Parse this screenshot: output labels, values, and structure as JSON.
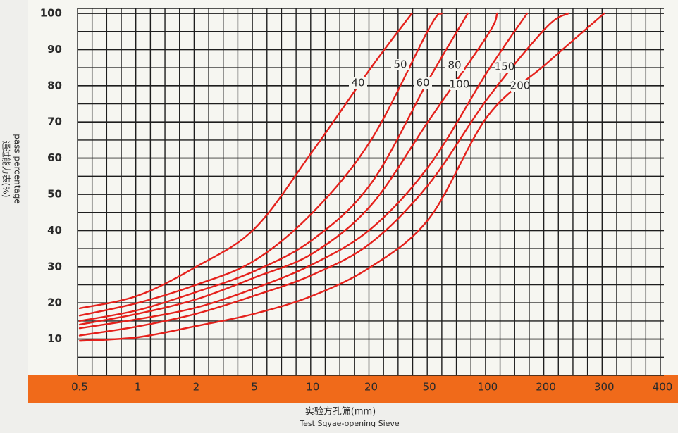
{
  "chart_data": {
    "type": "line",
    "xlabel_cn": "实验方孔筛(mm)",
    "xlabel": "Test Sqyae-opening Sieve",
    "ylabel": "pass percentage",
    "ylabel_cn": "通过能力表(%)",
    "xlim": [
      0.5,
      400
    ],
    "xticks": [
      0.5,
      1,
      2,
      5,
      10,
      20,
      50,
      100,
      200,
      300,
      400
    ],
    "ylim": [
      0,
      100
    ],
    "yticks": [
      10,
      20,
      30,
      40,
      50,
      60,
      70,
      80,
      90,
      100
    ],
    "grid": true,
    "series": [
      {
        "name": "40",
        "color": "#e5211c",
        "x": [
          0.5,
          1,
          2,
          5,
          10,
          20,
          38
        ],
        "values": [
          18.5,
          22,
          30,
          40.5,
          62,
          85,
          100
        ]
      },
      {
        "name": "50",
        "color": "#e5211c",
        "x": [
          0.5,
          1,
          2,
          5,
          10,
          20,
          50,
          58
        ],
        "values": [
          16.5,
          20,
          25,
          31.7,
          45,
          65,
          96,
          100
        ]
      },
      {
        "name": "60",
        "color": "#e5211c",
        "x": [
          0.5,
          1,
          2,
          5,
          10,
          20,
          50,
          79
        ],
        "values": [
          15,
          18,
          23,
          28.8,
          37.5,
          53,
          82,
          100
        ]
      },
      {
        "name": "80",
        "color": "#e5211c",
        "x": [
          0.5,
          1,
          2,
          5,
          10,
          20,
          50,
          100,
          112
        ],
        "values": [
          14,
          17,
          21,
          27,
          33.7,
          47,
          70.6,
          94,
          100
        ]
      },
      {
        "name": "100",
        "color": "#e5211c",
        "x": [
          0.5,
          1,
          2,
          5,
          10,
          20,
          50,
          100,
          160
        ],
        "values": [
          13,
          15.5,
          18.7,
          24,
          30.7,
          40.5,
          58,
          84,
          100
        ]
      },
      {
        "name": "150",
        "color": "#e5211c",
        "x": [
          0.5,
          1,
          2,
          5,
          10,
          20,
          50,
          100,
          200,
          234
        ],
        "values": [
          11,
          13.5,
          17,
          22,
          27.8,
          36.6,
          53,
          76.5,
          96,
          100
        ]
      },
      {
        "name": "200",
        "color": "#e5211c",
        "x": [
          0.5,
          1,
          2,
          5,
          10,
          20,
          50,
          100,
          200,
          300
        ],
        "values": [
          9.5,
          10.5,
          13.6,
          17,
          22,
          30,
          43.4,
          71.6,
          86,
          100
        ]
      }
    ]
  }
}
